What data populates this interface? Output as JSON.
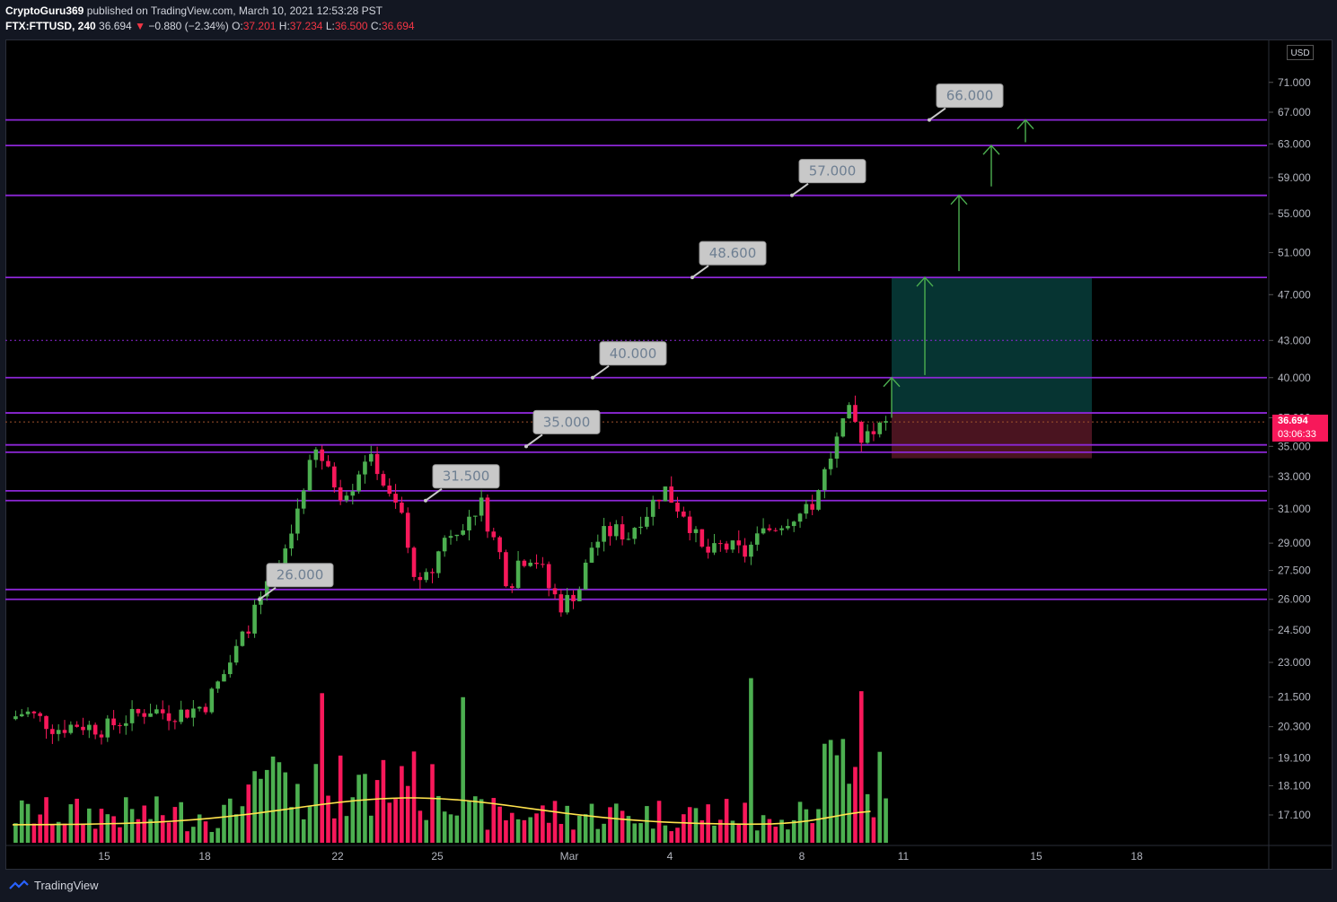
{
  "header": {
    "author": "CryptoGuru369",
    "published_text": " published on TradingView.com, March 10, 2021 12:53:28 PST",
    "symbol": "FTX:FTTUSD, 240",
    "last": "36.694",
    "change": "−0.880 (−2.34%)",
    "open_label": "O:",
    "open": "37.201",
    "high_label": "H:",
    "high": "37.234",
    "low_label": "L:",
    "low": "36.500",
    "close_label": "C:",
    "close": "36.694"
  },
  "axis": {
    "currency": "USD",
    "price_ticks": [
      "71.000",
      "67.000",
      "63.000",
      "59.000",
      "55.000",
      "51.000",
      "47.000",
      "43.000",
      "40.000",
      "37.000",
      "35.000",
      "33.000",
      "31.000",
      "29.000",
      "27.500",
      "26.000",
      "24.500",
      "23.000",
      "21.500",
      "20.300",
      "19.100",
      "18.100",
      "17.100"
    ],
    "date_ticks": [
      "15",
      "18",
      "22",
      "25",
      "Mar",
      "4",
      "8",
      "11",
      "15",
      "18"
    ]
  },
  "last_price": {
    "value": "36.694",
    "countdown": "03:06:33"
  },
  "footer": {
    "brand": "TradingView"
  },
  "colors": {
    "up": "#4caf50",
    "down": "#f7185a",
    "level": "#8c27d6",
    "label_bg": "#c8c8c8",
    "label_text": "#6e7f92",
    "arrow": "#4caf50",
    "ma": "#ffe34d",
    "target_zone": "#063432",
    "stop_zone": "#4a1420"
  },
  "chart_data": {
    "type": "candlestick",
    "symbol": "FTX:FTTUSD",
    "interval": "240",
    "scale": "log",
    "y_range": [
      16.2,
      75
    ],
    "horizontal_levels": [
      66,
      62.8,
      57,
      48.6,
      40,
      37.35,
      35.1,
      34.6,
      32.1,
      31.5,
      26.5,
      26.0
    ],
    "dotted_levels": [
      43.0,
      36.7
    ],
    "level_labels": [
      "66.000",
      "57.000",
      "48.600",
      "40.000",
      "35.000",
      "31.500",
      "26.000"
    ],
    "position": {
      "entry": 37.3,
      "target": 48.6,
      "stop": 34.2
    },
    "candles_approx": [
      [
        "Feb 13",
        20.6,
        20.9
      ],
      [
        "Feb 14",
        20.4,
        20.1
      ],
      [
        "Feb 15",
        20.3,
        20.6
      ],
      [
        "Feb 16",
        20.5,
        20.9
      ],
      [
        "Feb 17",
        21.0,
        22.5
      ],
      [
        "Feb 18",
        24.0,
        26.3
      ],
      [
        "Feb 19",
        27.5,
        34.6
      ],
      [
        "Feb 20",
        33.8,
        32.1
      ],
      [
        "Feb 21",
        32.4,
        34.3
      ],
      [
        "Feb 22",
        33.8,
        30.3
      ],
      [
        "Feb 23",
        27.5,
        26.2
      ],
      [
        "Feb 24",
        29.0,
        30.6
      ],
      [
        "Feb 25",
        30.7,
        31.4
      ],
      [
        "Feb 26",
        28.7,
        26.3
      ],
      [
        "Feb 27",
        27.8,
        28.3
      ],
      [
        "Feb 28",
        28.2,
        26.0
      ],
      [
        "Mar 1",
        25.3,
        26.3
      ],
      [
        "Mar 2",
        29.3,
        30.1
      ],
      [
        "Mar 3",
        32.2,
        31.8
      ],
      [
        "Mar 4",
        30.8,
        28.6
      ],
      [
        "Mar 5",
        28.7,
        28.9
      ],
      [
        "Mar 6",
        28.4,
        29.6
      ],
      [
        "Mar 7",
        30.6,
        30.9
      ],
      [
        "Mar 8",
        31.5,
        35.2
      ],
      [
        "Mar 9",
        35.6,
        37.4
      ],
      [
        "Mar 10",
        37.2,
        36.694
      ]
    ],
    "volume_ma": "yellow moving average of volume"
  }
}
